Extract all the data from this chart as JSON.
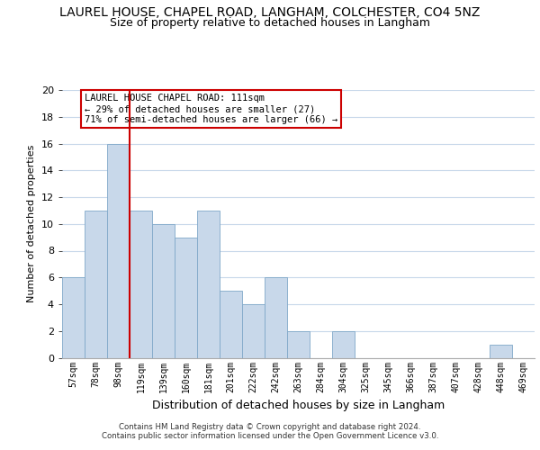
{
  "title": "LAUREL HOUSE, CHAPEL ROAD, LANGHAM, COLCHESTER, CO4 5NZ",
  "subtitle": "Size of property relative to detached houses in Langham",
  "xlabel": "Distribution of detached houses by size in Langham",
  "ylabel": "Number of detached properties",
  "bin_labels": [
    "57sqm",
    "78sqm",
    "98sqm",
    "119sqm",
    "139sqm",
    "160sqm",
    "181sqm",
    "201sqm",
    "222sqm",
    "242sqm",
    "263sqm",
    "284sqm",
    "304sqm",
    "325sqm",
    "345sqm",
    "366sqm",
    "387sqm",
    "407sqm",
    "428sqm",
    "448sqm",
    "469sqm"
  ],
  "bar_values": [
    6,
    11,
    16,
    11,
    10,
    9,
    11,
    5,
    4,
    6,
    2,
    0,
    2,
    0,
    0,
    0,
    0,
    0,
    0,
    1,
    0
  ],
  "bar_color": "#c8d8ea",
  "bar_edge_color": "#7fa8c8",
  "vline_x_index": 2,
  "vline_color": "#cc0000",
  "ylim": [
    0,
    20
  ],
  "yticks": [
    0,
    2,
    4,
    6,
    8,
    10,
    12,
    14,
    16,
    18,
    20
  ],
  "annotation_title": "LAUREL HOUSE CHAPEL ROAD: 111sqm",
  "annotation_line1": "← 29% of detached houses are smaller (27)",
  "annotation_line2": "71% of semi-detached houses are larger (66) →",
  "annotation_box_color": "#ffffff",
  "annotation_box_edge": "#cc0000",
  "footer_line1": "Contains HM Land Registry data © Crown copyright and database right 2024.",
  "footer_line2": "Contains public sector information licensed under the Open Government Licence v3.0.",
  "grid_color": "#c8d8ea",
  "background_color": "#ffffff",
  "title_fontsize": 10,
  "subtitle_fontsize": 9,
  "ylabel_fontsize": 8,
  "xlabel_fontsize": 9
}
